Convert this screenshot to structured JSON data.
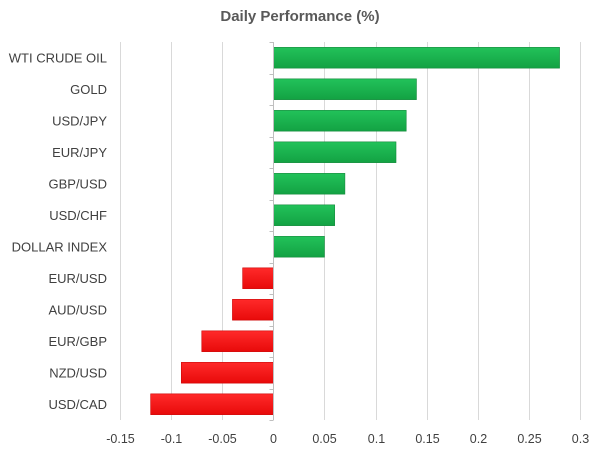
{
  "chart_data": {
    "type": "bar",
    "orientation": "horizontal",
    "title": "Daily Performance (%)",
    "xlabel": "",
    "ylabel": "",
    "categories": [
      "WTI CRUDE OIL",
      "GOLD",
      "USD/JPY",
      "EUR/JPY",
      "GBP/USD",
      "USD/CHF",
      "DOLLAR INDEX",
      "EUR/USD",
      "AUD/USD",
      "EUR/GBP",
      "NZD/USD",
      "USD/CAD"
    ],
    "values": [
      0.28,
      0.14,
      0.13,
      0.12,
      0.07,
      0.06,
      0.05,
      -0.03,
      -0.04,
      -0.07,
      -0.09,
      -0.12
    ],
    "xlim": [
      -0.15,
      0.3
    ],
    "xticks": [
      -0.15,
      -0.1,
      -0.05,
      0,
      0.05,
      0.1,
      0.15,
      0.2,
      0.25,
      0.3
    ],
    "xtick_labels": [
      "-0.15",
      "-0.1",
      "-0.05",
      "0",
      "0.05",
      "0.1",
      "0.15",
      "0.2",
      "0.25",
      "0.3"
    ],
    "grid": true,
    "colors": {
      "positive": "#1ab24b",
      "positive_dark": "#12893a",
      "negative": "#ff1414",
      "negative_dark": "#cc0000",
      "grid": "#d9d9d9",
      "axis": "#bfbfbf"
    }
  }
}
